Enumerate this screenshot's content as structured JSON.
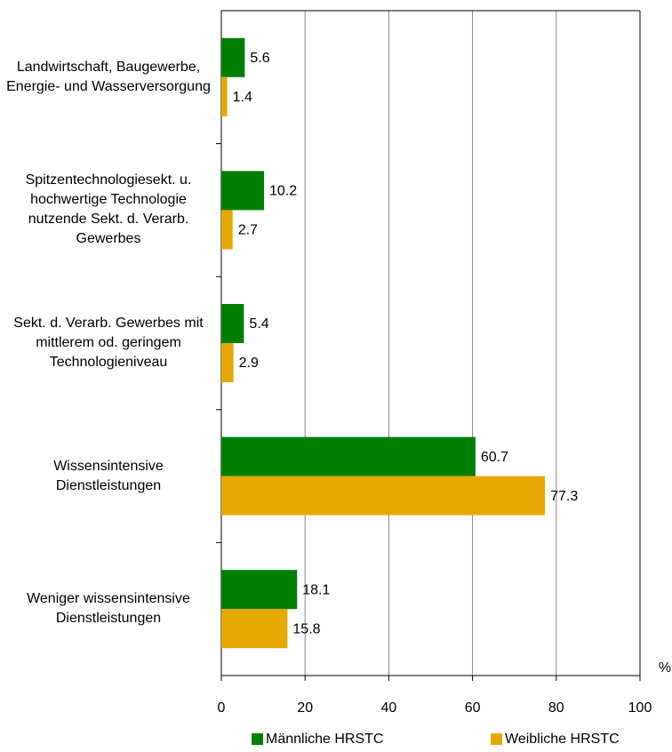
{
  "chart_data": {
    "type": "hbar",
    "categories": [
      "Landwirtschaft, Baugewerbe, Energie- und Wasserversorgung",
      "Spitzentechnologiesekt. u. hochwertige Technologie nutzende Sekt. d. Verarb. Gewerbes",
      "Sekt. d. Verarb. Gewerbes mit mittlerem od. geringem Technologieniveau",
      "Wissensintensive Dienstleistungen",
      "Weniger wissensintensive Dienstleistungen"
    ],
    "series": [
      {
        "name": "Männliche HRSTC",
        "color": "#008000",
        "values": [
          5.6,
          10.2,
          5.4,
          60.7,
          18.1
        ]
      },
      {
        "name": "Weibliche HRSTC",
        "color": "#e6a800",
        "values": [
          1.4,
          2.7,
          2.9,
          77.3,
          15.8
        ]
      }
    ],
    "x_label": "%",
    "xlim": [
      0,
      100
    ],
    "xticks": [
      0,
      20,
      40,
      60,
      80,
      100
    ],
    "grid": true,
    "legend": "bottom"
  }
}
